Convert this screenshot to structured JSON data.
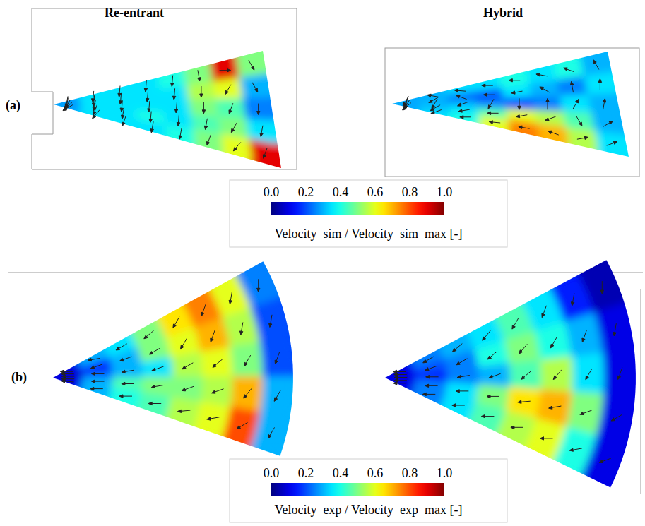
{
  "chart_data": {
    "type": "heatmap",
    "columns": [
      "Re-entrant",
      "Hybrid"
    ],
    "rows": [
      {
        "label": "(a)",
        "colorbar_label": "Velocity_sim / Velocity_sim_max [-]",
        "color_range": [
          0,
          1
        ],
        "color_ticks": [
          {
            "value": 0,
            "label": "0.0"
          },
          {
            "value": 0.2,
            "label": "0.2"
          },
          {
            "value": 0.4,
            "label": "0.4"
          },
          {
            "value": 0.6,
            "label": "0.6"
          },
          {
            "value": 0.8,
            "label": "0.8"
          },
          {
            "value": 1,
            "label": "1.0"
          }
        ],
        "panels": [
          {
            "cells": [
              [
                0.3,
                0.35,
                0.35,
                0.35,
                0.4,
                0.5,
                0.9,
                0.5
              ],
              [
                0.3,
                0.35,
                0.35,
                0.35,
                0.35,
                0.55,
                0.6,
                0.3
              ],
              [
                0.15,
                0.35,
                0.35,
                0.35,
                0.35,
                0.5,
                0.45,
                0.25
              ],
              [
                0.3,
                0.35,
                0.35,
                0.4,
                0.35,
                0.45,
                0.5,
                0.35
              ],
              [
                0.3,
                0.35,
                0.35,
                0.35,
                0.4,
                0.5,
                0.6,
                0.9
              ]
            ],
            "directions": [
              [
                -100,
                -95,
                -95,
                -95,
                -95,
                -80,
                0,
                -60
              ],
              [
                -100,
                -95,
                -95,
                -95,
                -95,
                -90,
                -120,
                -60
              ],
              [
                -120,
                -100,
                -95,
                -95,
                -95,
                -90,
                -110,
                -90
              ],
              [
                -140,
                -110,
                -100,
                -95,
                -95,
                -100,
                -120,
                -100
              ],
              [
                -150,
                -130,
                -110,
                -100,
                -100,
                -110,
                -130,
                -110
              ]
            ]
          },
          {
            "cells": [
              [
                0.3,
                0.3,
                0.35,
                0.35,
                0.4,
                0.35,
                0.4,
                0.3
              ],
              [
                0.3,
                0.3,
                0.2,
                0.2,
                0.35,
                0.3,
                0.25,
                0.35
              ],
              [
                0.25,
                0.3,
                0.3,
                0.25,
                0.2,
                0.25,
                0.35,
                0.3
              ],
              [
                0.3,
                0.3,
                0.35,
                0.45,
                0.6,
                0.55,
                0.45,
                0.3
              ],
              [
                0.3,
                0.35,
                0.4,
                0.6,
                0.75,
                0.7,
                0.55,
                0.35
              ]
            ],
            "directions": [
              [
                -120,
                170,
                175,
                180,
                180,
                170,
                160,
                120
              ],
              [
                -110,
                -150,
                160,
                180,
                -170,
                150,
                100,
                90
              ],
              [
                -100,
                -120,
                -160,
                -120,
                -90,
                90,
                60,
                80
              ],
              [
                -120,
                -150,
                -170,
                180,
                -170,
                -160,
                -60,
                30
              ],
              [
                -140,
                -160,
                180,
                175,
                170,
                160,
                10,
                20
              ]
            ]
          }
        ]
      },
      {
        "label": "(b)",
        "colorbar_label": "Velocity_exp / Velocity_exp_max [-]",
        "color_range": [
          0,
          1
        ],
        "color_ticks": [
          {
            "value": 0,
            "label": "0.0"
          },
          {
            "value": 0.2,
            "label": "0.2"
          },
          {
            "value": 0.4,
            "label": "0.4"
          },
          {
            "value": 0.6,
            "label": "0.6"
          },
          {
            "value": 0.8,
            "label": "0.8"
          },
          {
            "value": 1,
            "label": "1.0"
          }
        ],
        "panels": [
          {
            "cells": [
              [
                0.1,
                0.3,
                0.35,
                0.5,
                0.65,
                0.75,
                0.6,
                0.25
              ],
              [
                0.1,
                0.15,
                0.3,
                0.5,
                0.6,
                0.7,
                0.55,
                0.2
              ],
              [
                0.05,
                0.2,
                0.3,
                0.35,
                0.55,
                0.6,
                0.5,
                0.2
              ],
              [
                0.1,
                0.3,
                0.45,
                0.5,
                0.5,
                0.55,
                0.7,
                0.3
              ],
              [
                0.1,
                0.3,
                0.4,
                0.45,
                0.55,
                0.6,
                0.8,
                0.3
              ]
            ],
            "directions": [
              [
                180,
                -170,
                -150,
                -140,
                -120,
                -110,
                -100,
                -90
              ],
              [
                180,
                -160,
                -160,
                -150,
                -120,
                -110,
                -100,
                -100
              ],
              [
                180,
                180,
                -170,
                -160,
                -150,
                -140,
                -120,
                -110
              ],
              [
                180,
                180,
                180,
                -170,
                -160,
                -160,
                -130,
                -120
              ],
              [
                175,
                180,
                180,
                180,
                -175,
                -170,
                -150,
                -120
              ]
            ]
          },
          {
            "cells": [
              [
                0.1,
                0.25,
                0.3,
                0.35,
                0.45,
                0.35,
                0.15,
                0.05
              ],
              [
                0.1,
                0.2,
                0.25,
                0.4,
                0.5,
                0.4,
                0.3,
                0.1
              ],
              [
                0.1,
                0.15,
                0.25,
                0.3,
                0.45,
                0.55,
                0.35,
                0.1
              ],
              [
                0.1,
                0.25,
                0.35,
                0.5,
                0.65,
                0.7,
                0.5,
                0.1
              ],
              [
                0.1,
                0.25,
                0.35,
                0.45,
                0.55,
                0.6,
                0.4,
                0.1
              ]
            ],
            "directions": [
              [
                180,
                -150,
                -140,
                -130,
                -120,
                -110,
                -100,
                -90
              ],
              [
                180,
                -160,
                -150,
                -140,
                -130,
                -120,
                -110,
                -100
              ],
              [
                180,
                180,
                -170,
                -160,
                -140,
                -130,
                -120,
                -110
              ],
              [
                180,
                180,
                180,
                180,
                -175,
                -170,
                -160,
                -150
              ],
              [
                180,
                180,
                180,
                180,
                180,
                180,
                -170,
                -160
              ]
            ]
          }
        ]
      }
    ]
  }
}
